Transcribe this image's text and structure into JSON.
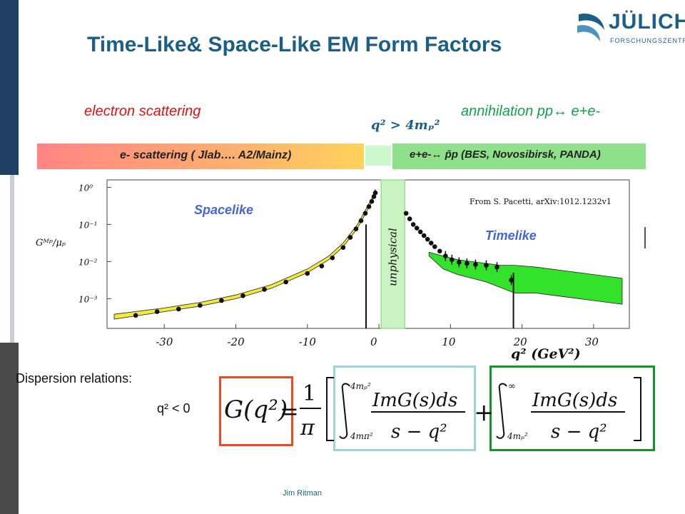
{
  "slide": {
    "title": "Time-Like& Space-Like EM Form Factors",
    "footer": "Jim Ritman",
    "logo": {
      "name": "JÜLICH",
      "sub": "FORSCHUNGSZENTRUM"
    }
  },
  "labels": {
    "electron_scattering": "electron scattering",
    "annihilation": "annihilation pp↔ e+e-",
    "q2_condition": "q² > 4mₚ²",
    "band_left": "e- scattering    ( Jlab…. A2/Mainz)",
    "band_right": "e+e-↔ p̄p   (BES, Novosibirsk, PANDA)",
    "dispersion": "Dispersion relations:",
    "q2_negative": "q² < 0"
  },
  "formula": {
    "lhs": "G(q²)",
    "equals": "=",
    "one": "1",
    "pi": "π",
    "int1_upper": "4mₚ²",
    "int1_lower": "4mπ²",
    "numerator": "ImG(s)ds",
    "denominator": "s − q²",
    "plus": "+",
    "int2_upper": "∞",
    "int2_lower": "4mₚ²"
  },
  "chart_data": {
    "type": "scatter",
    "title": "",
    "xlabel": "q²  (GeV²)",
    "ylabel": "Gᴹᵖ/μₚ",
    "xlim": [
      -38,
      35
    ],
    "ylim": [
      -3.8,
      0.2
    ],
    "y_scale": "log",
    "x_ticks": [
      -30,
      -20,
      -10,
      0,
      10,
      20,
      30
    ],
    "y_ticks": [
      0,
      -1,
      -2,
      -3
    ],
    "y_tick_labels": [
      "10⁰",
      "10⁻¹",
      "10⁻²",
      "10⁻³"
    ],
    "annotations": {
      "spacelike": "Spacelike",
      "timelike": "Timelike",
      "unphysical": "unphysical",
      "source": "From S. Pacetti, arXiv:1012.1232v1"
    },
    "unphysical_region": [
      0.3,
      3.6
    ],
    "spacelike_band": {
      "x": [
        -37,
        -30,
        -25,
        -20,
        -15,
        -10,
        -7,
        -5,
        -3,
        -2,
        -1,
        -0.5
      ],
      "lower": [
        -3.55,
        -3.35,
        -3.2,
        -3.0,
        -2.72,
        -2.3,
        -1.95,
        -1.6,
        -1.1,
        -0.75,
        -0.4,
        -0.15
      ],
      "upper": [
        -3.42,
        -3.25,
        -3.1,
        -2.9,
        -2.62,
        -2.2,
        -1.85,
        -1.5,
        -1.0,
        -0.65,
        -0.3,
        -0.05
      ]
    },
    "timelike_band": {
      "x": [
        7,
        9,
        11,
        13,
        15,
        17,
        19,
        22,
        26,
        30,
        34
      ],
      "lower": [
        -1.85,
        -2.2,
        -2.35,
        -2.45,
        -2.55,
        -2.7,
        -2.85,
        -2.85,
        -2.95,
        -3.05,
        -3.15
      ],
      "upper": [
        -1.75,
        -1.85,
        -1.95,
        -2.0,
        -2.05,
        -2.1,
        -2.1,
        -2.15,
        -2.25,
        -2.35,
        -2.45
      ]
    },
    "series": [
      {
        "kind": "spacelike",
        "x": [
          -34,
          -31,
          -28,
          -25,
          -22,
          -19,
          -16,
          -13,
          -10,
          -8,
          -6.5,
          -5,
          -4,
          -3.2,
          -2.5,
          -1.9,
          -1.4,
          -1.0,
          -0.7,
          -0.5
        ],
        "y": [
          -3.45,
          -3.35,
          -3.28,
          -3.18,
          -3.05,
          -2.92,
          -2.75,
          -2.55,
          -2.32,
          -2.12,
          -1.9,
          -1.62,
          -1.35,
          -1.12,
          -0.9,
          -0.7,
          -0.52,
          -0.38,
          -0.25,
          -0.15
        ]
      },
      {
        "kind": "timelike",
        "x": [
          3.8,
          4.3,
          4.8,
          5.3,
          5.8,
          6.3,
          6.8,
          7.3,
          7.8,
          8.5,
          9.3,
          10.2,
          11.2,
          12.3,
          13.5,
          15.0,
          16.5,
          18.5
        ],
        "y": [
          -0.7,
          -0.85,
          -1.0,
          -1.1,
          -1.2,
          -1.3,
          -1.4,
          -1.5,
          -1.6,
          -1.72,
          -1.85,
          -1.95,
          -2.02,
          -2.05,
          -2.08,
          -2.1,
          -2.15,
          -2.5
        ]
      }
    ]
  }
}
